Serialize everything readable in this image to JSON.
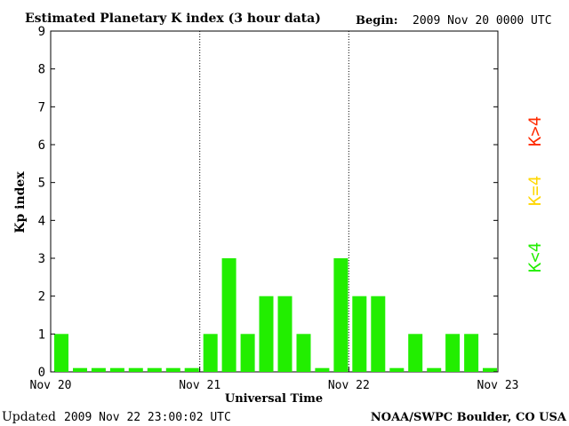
{
  "header": {
    "title": "Estimated Planetary K index (3 hour data)",
    "begin_label": "Begin:",
    "begin_value": "2009 Nov 20 0000 UTC"
  },
  "footer": {
    "updated_label": "Updated",
    "updated_value": "2009 Nov 22 23:00:02 UTC",
    "source": "NOAA/SWPC Boulder, CO USA"
  },
  "legend": [
    {
      "label": "K>4",
      "color": "#ff2a00"
    },
    {
      "label": "K=4",
      "color": "#ffd700"
    },
    {
      "label": "K<4",
      "color": "#22ee00"
    }
  ],
  "chart_data": {
    "type": "bar",
    "ylabel": "Kp index",
    "xlabel": "Universal Time",
    "ylim": [
      0,
      9
    ],
    "yticks": [
      "0",
      "1",
      "2",
      "3",
      "4",
      "5",
      "6",
      "7",
      "8",
      "9"
    ],
    "xticks": [
      "Nov 20",
      "Nov 21",
      "Nov 22",
      "Nov 23"
    ],
    "bar_color": "#22ee00",
    "values": [
      1,
      0.1,
      0.1,
      0.1,
      0.1,
      0.1,
      0.1,
      0.1,
      1,
      3,
      1,
      2,
      2,
      1,
      0.1,
      3,
      2,
      2,
      0.1,
      1,
      0.1,
      1,
      1,
      0.1
    ]
  }
}
